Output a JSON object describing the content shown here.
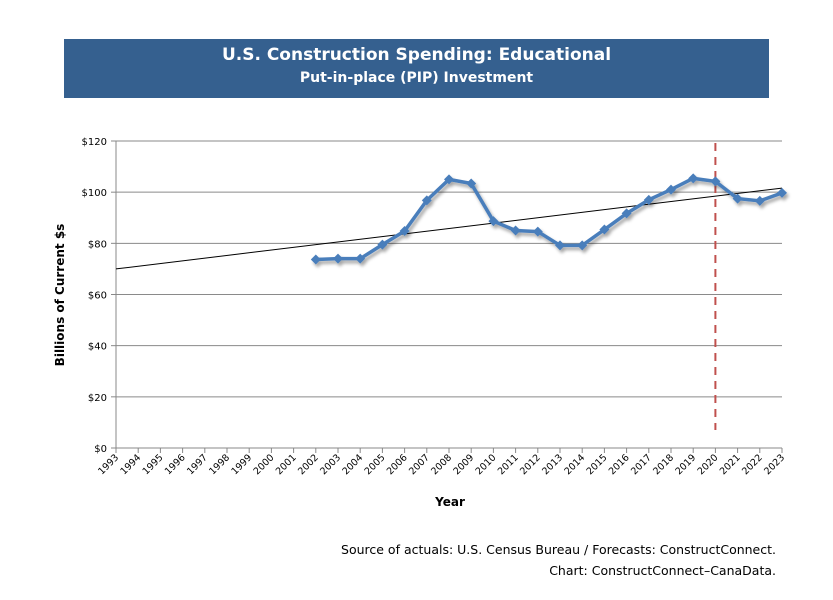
{
  "chart_data": {
    "type": "line",
    "title": "U.S. Construction Spending: Educational",
    "subtitle": "Put-in-place (PIP) Investment",
    "xlabel": "Year",
    "ylabel": "Billions of Current $s",
    "ylim": [
      0,
      120
    ],
    "yticks": [
      "$0",
      "$20",
      "$40",
      "$60",
      "$80",
      "$100",
      "$120"
    ],
    "categories": [
      "1993",
      "1994",
      "1995",
      "1996",
      "1997",
      "1998",
      "1999",
      "2000",
      "2001",
      "2002",
      "2003",
      "2004",
      "2005",
      "2006",
      "2007",
      "2008",
      "2009",
      "2010",
      "2011",
      "2012",
      "2013",
      "2014",
      "2015",
      "2016",
      "2017",
      "2018",
      "2019",
      "2020",
      "2021",
      "2022",
      "2023"
    ],
    "series": [
      {
        "values": [
          null,
          null,
          null,
          null,
          null,
          null,
          null,
          null,
          null,
          73.7,
          74,
          74,
          79.5,
          84.8,
          96.8,
          105,
          103.4,
          88.7,
          85,
          84.6,
          79.2,
          79.2,
          85.4,
          91.7,
          97,
          101,
          105.4,
          104.2,
          97.5,
          96.6,
          99.7
        ],
        "color": "#4a7ebb"
      }
    ],
    "trendline": {
      "start": 70,
      "end": 101.6,
      "color": "#000000"
    },
    "forecast_divider": {
      "year": "2020",
      "color": "#c0504d"
    },
    "grid": "horizontal",
    "banner_color": "#35608f"
  },
  "notes": {
    "source": "Source of actuals: U.S. Census Bureau / Forecasts: ConstructConnect.",
    "chart": "Chart: ConstructConnect–CanaData."
  }
}
